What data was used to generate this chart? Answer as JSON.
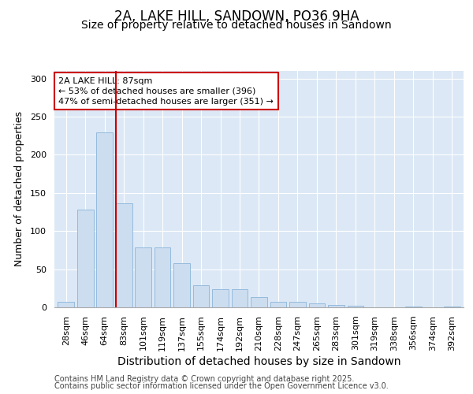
{
  "title1": "2A, LAKE HILL, SANDOWN, PO36 9HA",
  "title2": "Size of property relative to detached houses in Sandown",
  "xlabel": "Distribution of detached houses by size in Sandown",
  "ylabel": "Number of detached properties",
  "categories": [
    "28sqm",
    "46sqm",
    "64sqm",
    "83sqm",
    "101sqm",
    "119sqm",
    "137sqm",
    "155sqm",
    "174sqm",
    "192sqm",
    "210sqm",
    "228sqm",
    "247sqm",
    "265sqm",
    "283sqm",
    "301sqm",
    "319sqm",
    "338sqm",
    "356sqm",
    "374sqm",
    "392sqm"
  ],
  "values": [
    7,
    128,
    229,
    136,
    79,
    79,
    58,
    29,
    24,
    24,
    13,
    7,
    7,
    5,
    3,
    2,
    0,
    0,
    1,
    0,
    1
  ],
  "bar_color": "#ccddf0",
  "bar_edge_color": "#89b4d9",
  "vline_color": "#cc0000",
  "vline_x_index": 3,
  "annotation_text": "2A LAKE HILL: 87sqm\n← 53% of detached houses are smaller (396)\n47% of semi-detached houses are larger (351) →",
  "annotation_box_facecolor": "#ffffff",
  "annotation_box_edgecolor": "#cc0000",
  "ylim": [
    0,
    310
  ],
  "yticks": [
    0,
    50,
    100,
    150,
    200,
    250,
    300
  ],
  "fig_bg_color": "#ffffff",
  "plot_bg_color": "#dce8f5",
  "grid_color": "#ffffff",
  "footer_line1": "Contains HM Land Registry data © Crown copyright and database right 2025.",
  "footer_line2": "Contains public sector information licensed under the Open Government Licence v3.0.",
  "title1_fontsize": 12,
  "title2_fontsize": 10,
  "xlabel_fontsize": 10,
  "ylabel_fontsize": 9,
  "tick_fontsize": 8,
  "annot_fontsize": 8,
  "footer_fontsize": 7
}
